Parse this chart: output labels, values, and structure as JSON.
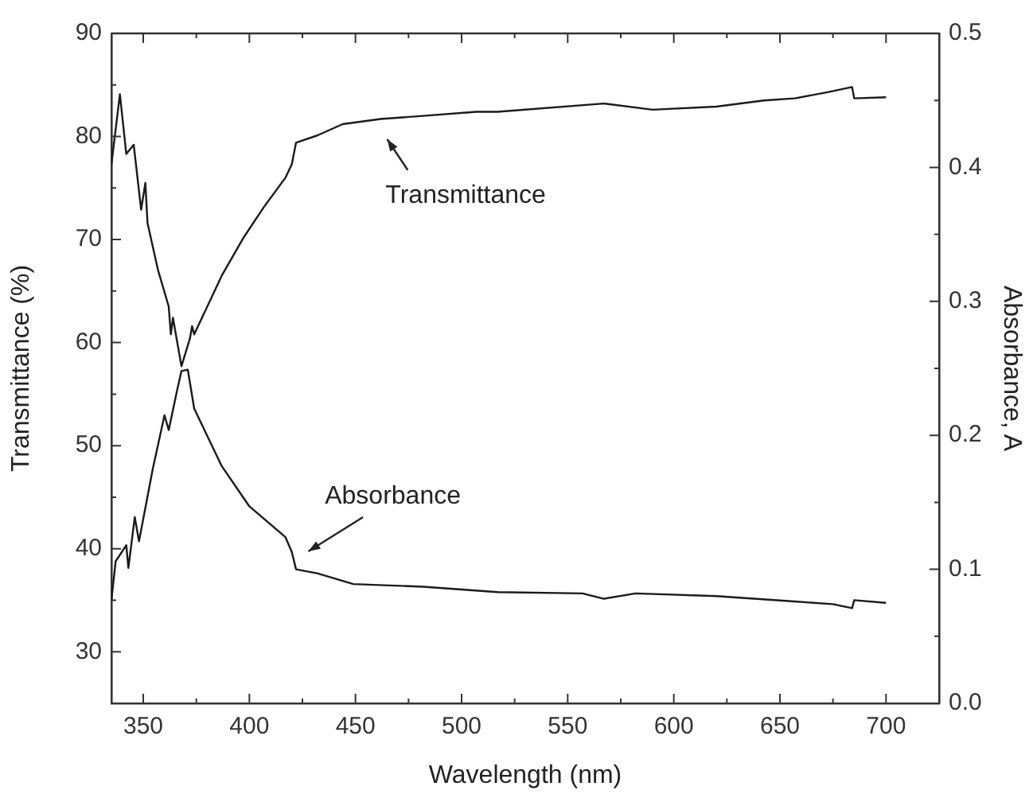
{
  "chart_data": {
    "type": "line",
    "xlabel": "Wavelength (nm)",
    "ylabel": "Transmittance (%)",
    "y2label": "Absorbance, A",
    "xlim": [
      335,
      725
    ],
    "xticks": [
      350,
      {
        "value": 375,
        "label": null
      },
      400,
      {
        "value": 425,
        "label": null
      },
      450,
      {
        "value": 475,
        "label": null
      },
      500,
      {
        "value": 525,
        "label": null
      },
      550,
      {
        "value": 575,
        "label": null
      },
      600,
      {
        "value": 625,
        "label": null
      },
      650,
      {
        "value": 675,
        "label": null
      },
      700
    ],
    "ylim": [
      25,
      90
    ],
    "yticks": [
      30,
      {
        "value": 35,
        "label": null
      },
      40,
      {
        "value": 45,
        "label": null
      },
      50,
      {
        "value": 55,
        "label": null
      },
      60,
      {
        "value": 65,
        "label": null
      },
      70,
      {
        "value": 75,
        "label": null
      },
      80,
      {
        "value": 85,
        "label": null
      },
      90
    ],
    "y2lim": [
      0,
      0.5
    ],
    "y2ticks": [
      {
        "value": 0,
        "label": "0.0"
      },
      {
        "value": 0.05,
        "label": null
      },
      0.1,
      {
        "value": 0.15,
        "label": null
      },
      0.2,
      {
        "value": 0.25,
        "label": null
      },
      0.3,
      {
        "value": 0.35,
        "label": null
      },
      0.4,
      {
        "value": 0.45,
        "label": null
      },
      0.5
    ],
    "grid": false,
    "legend": false,
    "marker": "none",
    "line_style": "solid",
    "series": [
      {
        "color": "#1a1a1a",
        "x": [
          335,
          339,
          342,
          345.5,
          349,
          351,
          352,
          357,
          362,
          363,
          364,
          368,
          372,
          373,
          374,
          387,
          397,
          407,
          417,
          420,
          422,
          432,
          444,
          462,
          482,
          507,
          517,
          567,
          590,
          620,
          642.5,
          657,
          672.5,
          684,
          685,
          700
        ],
        "values": [
          77.3,
          84.1,
          78.3,
          79.2,
          72.9,
          75.5,
          71.6,
          67,
          63.5,
          60.8,
          62.4,
          57.7,
          60.4,
          61.6,
          60.8,
          66.5,
          70.1,
          73.2,
          76,
          77.3,
          79.4,
          80.1,
          81.2,
          81.7,
          82,
          82.4,
          82.4,
          83.2,
          82.6,
          82.9,
          83.5,
          83.7,
          84.3,
          84.8,
          83.7,
          83.8
        ]
      },
      {
        "color": "#1a1a1a",
        "axis": "y2",
        "x": [
          335,
          337,
          342,
          343,
          346,
          348,
          354.5,
          360,
          362,
          366,
          368,
          371,
          374,
          387,
          400,
          417,
          420,
          422,
          432,
          449,
          482,
          517,
          557,
          567,
          582,
          620,
          657,
          675,
          684,
          685,
          700
        ],
        "values": [
          0.077,
          0.106,
          0.118,
          0.101,
          0.139,
          0.121,
          0.175,
          0.215,
          0.204,
          0.234,
          0.248,
          0.249,
          0.22,
          0.177,
          0.147,
          0.124,
          0.113,
          0.1,
          0.097,
          0.089,
          0.087,
          0.083,
          0.082,
          0.078,
          0.082,
          0.08,
          0.076,
          0.074,
          0.071,
          0.077,
          0.075
        ]
      }
    ],
    "annotations": [
      "Transmittance",
      "Absorbance"
    ]
  }
}
